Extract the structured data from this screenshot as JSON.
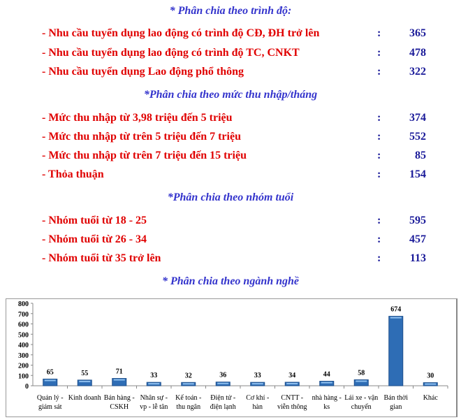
{
  "sections": [
    {
      "heading": "* Phân chia theo trình độ:",
      "items": [
        {
          "label": "- Nhu cầu tuyển dụng lao động có trình độ CĐ, ĐH trở lên",
          "value": "365"
        },
        {
          "label": "- Nhu cầu tuyển dụng lao động có trình độ TC, CNKT",
          "value": "478"
        },
        {
          "label": "- Nhu cầu tuyển dụng Lao động phổ thông",
          "value": "322"
        }
      ]
    },
    {
      "heading": "*Phân chia theo mức thu nhập/tháng",
      "items": [
        {
          "label": "- Mức thu nhập từ 3,98 triệu đến 5 triệu",
          "value": "374"
        },
        {
          "label": "- Mức thu nhập từ  trên 5  triệu đến 7 triệu",
          "value": "552"
        },
        {
          "label": "- Mức thu nhập từ  trên 7 triệu đến 15 triệu",
          "value": "85"
        },
        {
          "label": "- Thỏa thuận",
          "value": "154"
        }
      ]
    },
    {
      "heading": "*Phân chia theo nhóm tuổi",
      "items": [
        {
          "label": "- Nhóm tuổi từ 18 - 25",
          "value": "595"
        },
        {
          "label": "- Nhóm tuổi từ 26 - 34",
          "value": "457"
        },
        {
          "label": "- Nhóm tuổi từ 35 trở lên",
          "value": "113"
        }
      ]
    }
  ],
  "colon": ":",
  "chart_heading": "* Phân chia theo ngành nghề",
  "chart_data": {
    "type": "bar",
    "categories": [
      [
        "Quản lý -",
        "giám sát"
      ],
      [
        "Kinh doanh"
      ],
      [
        "Bán hàng -",
        "CSKH"
      ],
      [
        "Nhân sự -",
        "vp - lễ tân"
      ],
      [
        "Kế toán -",
        "thu ngân"
      ],
      [
        "Điện tử -",
        "điện lạnh"
      ],
      [
        "Cơ khí -",
        "hàn"
      ],
      [
        "CNTT -",
        "viễn thông"
      ],
      [
        "nhà hàng -",
        "ks"
      ],
      [
        "Lái xe - vận",
        "chuyển"
      ],
      [
        "Bán thời",
        "gian"
      ],
      [
        "Khác"
      ]
    ],
    "values": [
      65,
      55,
      71,
      33,
      32,
      36,
      33,
      34,
      44,
      58,
      674,
      30
    ],
    "ylim": [
      0,
      800
    ],
    "yticks": [
      0,
      100,
      200,
      300,
      400,
      500,
      600,
      700,
      800
    ],
    "bar_color": "#2e6db5",
    "grid": false
  }
}
